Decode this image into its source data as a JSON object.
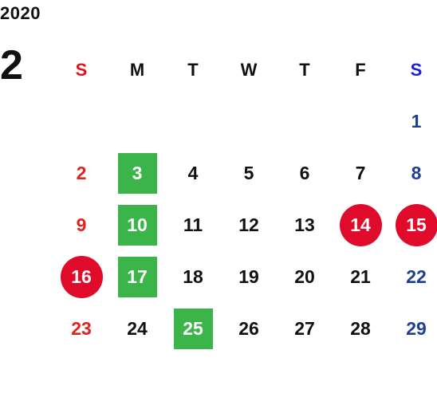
{
  "year": "2020",
  "month": "2",
  "weekdays": [
    "S",
    "M",
    "T",
    "W",
    "T",
    "F",
    "S"
  ],
  "weeks": [
    [
      "",
      "",
      "",
      "",
      "",
      "",
      "1"
    ],
    [
      "2",
      "3",
      "4",
      "5",
      "6",
      "7",
      "8"
    ],
    [
      "9",
      "10",
      "11",
      "12",
      "13",
      "14",
      "15"
    ],
    [
      "16",
      "17",
      "18",
      "19",
      "20",
      "21",
      "22"
    ],
    [
      "23",
      "24",
      "25",
      "26",
      "27",
      "28",
      "29"
    ]
  ],
  "highlights": {
    "green_square": [
      "3",
      "10",
      "17",
      "25"
    ],
    "red_circle": [
      "14",
      "15",
      "16"
    ]
  },
  "colors": {
    "sunday": "#e0231b",
    "saturday": "#1f3f8f",
    "saturday_header": "#1b1fd6",
    "green_square": "#3bb44a",
    "red_circle": "#e00a2b"
  }
}
